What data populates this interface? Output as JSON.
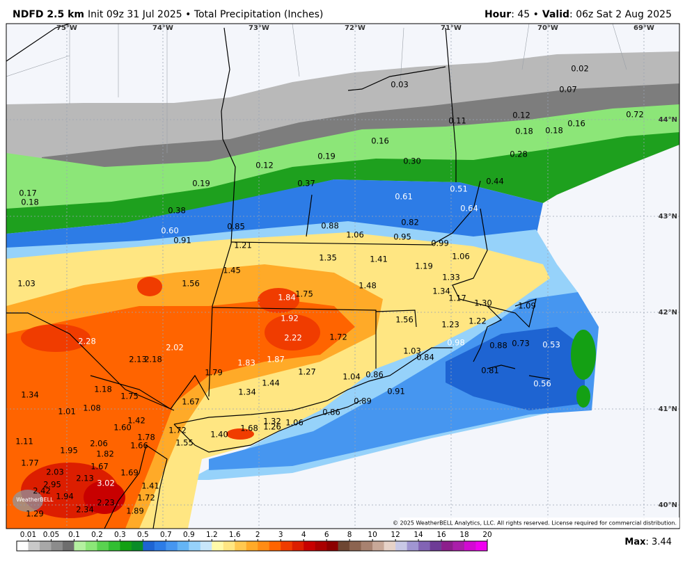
{
  "header": {
    "model": "NDFD 2.5 km",
    "init": "Init 09z 31 Jul 2025 • Total Precipitation (Inches)",
    "hour_label": "Hour",
    "hour": ": 45 •",
    "valid_label": "Valid",
    "valid": ": 06z Sat 2 Aug 2025"
  },
  "longitudes": [
    "75°W",
    "74°W",
    "73°W",
    "72°W",
    "71°W",
    "70°W",
    "69°W"
  ],
  "latitudes": [
    "44°N",
    "43°N",
    "42°N",
    "41°N",
    "40°N"
  ],
  "map_labels": [
    "0.02",
    "0.03",
    "0.07",
    "0.12",
    "0.11",
    "0.72",
    "0.18",
    "0.18",
    "0.16",
    "0.16",
    "0.19",
    "0.12",
    "0.30",
    "0.28",
    "0.17",
    "0.18",
    "0.19",
    "0.37",
    "0.44",
    "0.51",
    "0.61",
    "0.38",
    "0.64",
    "0.88",
    "0.82",
    "0.85",
    "1.06",
    "0.95",
    "0.60",
    "0.91",
    "0.99",
    "1.21",
    "1.06",
    "1.35",
    "1.41",
    "1.19",
    "1.45",
    "1.03",
    "1.56",
    "1.33",
    "1.48",
    "1.34",
    "1.75",
    "1.84",
    "1.17",
    "1.30",
    "1.09",
    "1.92",
    "1.56",
    "1.23",
    "1.22",
    "2.22",
    "1.72",
    "2.28",
    "0.98",
    "0.88",
    "0.73",
    "0.53",
    "2.02",
    "1.03",
    "0.84",
    "2.13",
    "2.18",
    "1.83",
    "1.87",
    "1.27",
    "0.81",
    "1.79",
    "1.04",
    "0.86",
    "1.44",
    "0.56",
    "1.18",
    "1.34",
    "1.75",
    "1.34",
    "0.91",
    "1.01",
    "1.08",
    "1.67",
    "0.89",
    "1.42",
    "0.86",
    "1.60",
    "1.32",
    "1.26",
    "1.06",
    "1.68",
    "1.72",
    "1.11",
    "2.06",
    "1.66",
    "1.78",
    "1.40",
    "1.55",
    "1.95",
    "1.82",
    "1.77",
    "1.67",
    "2.03",
    "1.69",
    "2.13",
    "3.02",
    "2.95",
    "1.41",
    "2.42",
    "1.94",
    "1.72",
    "2.23",
    "2.34",
    "1.29",
    "1.89"
  ],
  "logo": "WeatherBELL",
  "copyright": "© 2025 WeatherBELL Analytics, LLC. All rights reserved. License required for commercial distribution.",
  "colorbar": {
    "ticks": [
      "0.01",
      "0.05",
      "0.1",
      "0.2",
      "0.3",
      "0.5",
      "0.7",
      "0.9",
      "1.2",
      "1.6",
      "2",
      "3",
      "4",
      "6",
      "8",
      "10",
      "12",
      "14",
      "16",
      "18",
      "20"
    ],
    "colors": [
      "#ffffff",
      "#c8c8c8",
      "#a8a8a8",
      "#8c8c8c",
      "#6e6e6e",
      "#b4f0a0",
      "#8ce678",
      "#5ad250",
      "#32be32",
      "#14a014",
      "#0a8c28",
      "#1e64d2",
      "#2d7ce6",
      "#4696f0",
      "#64b4f5",
      "#96d2fa",
      "#c8e6fa",
      "#fffaaa",
      "#ffe682",
      "#ffc850",
      "#ffaa28",
      "#ff8c14",
      "#ff6400",
      "#f03c00",
      "#dc1e00",
      "#c80000",
      "#aa0000",
      "#8c0000",
      "#6e4632",
      "#8c6450",
      "#a88270",
      "#c8a898",
      "#e6d2c8",
      "#c8c8e6",
      "#a096d2",
      "#8264b4",
      "#6e3c96",
      "#8c1e8c",
      "#aa1eaa",
      "#d20ad2",
      "#f000f0"
    ]
  },
  "max_label": "Max",
  "max_value": ": 3.44"
}
